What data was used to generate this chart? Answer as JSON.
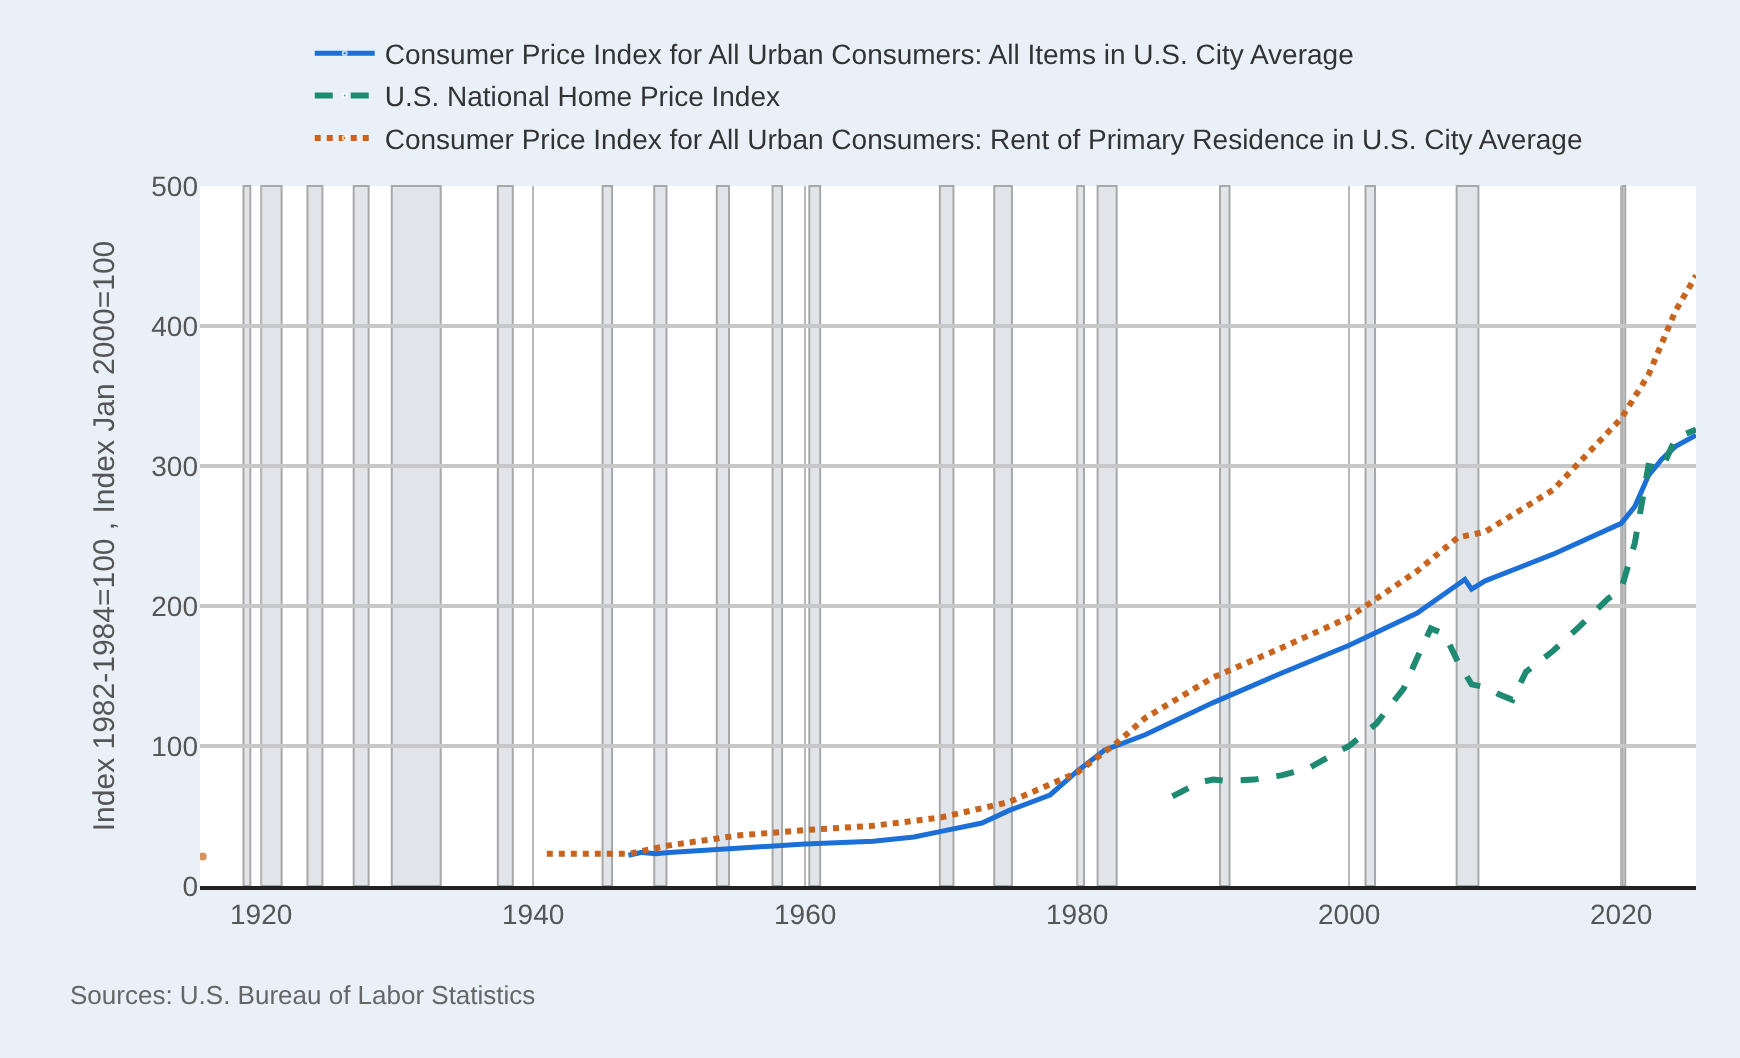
{
  "chart_data": {
    "type": "line",
    "ylabel": "Index 1982-1984=100 , Index Jan 2000=100",
    "annotations": [
      "Sources: U.S. Bureau of Labor Statistics"
    ],
    "xlim": [
      1915.5,
      2025.5
    ],
    "xticks": [
      1920,
      1940,
      1960,
      1980,
      2000,
      2020
    ],
    "ylim": [
      0,
      500
    ],
    "yticks": [
      0,
      100,
      200,
      300,
      400,
      500
    ],
    "grid": true,
    "legend": "top",
    "series": [
      {
        "name": "Consumer Price Index for All Urban Consumers: All Items in U.S. City Average",
        "color": "#1c6fd6",
        "line_style": "solid",
        "x": [
          1947,
          1948,
          1949,
          1950,
          1955,
          1960,
          1965,
          1968,
          1970,
          1973,
          1975,
          1978,
          1980,
          1982,
          1985,
          1990,
          1995,
          2000,
          2005,
          2008.5,
          2009,
          2010,
          2015,
          2020,
          2021,
          2022,
          2023,
          2024,
          2025.5
        ],
        "values": [
          22,
          24,
          23,
          24,
          27,
          30,
          32,
          35,
          39,
          45,
          54,
          65,
          82,
          97,
          108,
          131,
          152,
          172,
          195,
          219,
          212,
          218,
          237,
          259,
          271,
          293,
          305,
          314,
          322
        ]
      },
      {
        "name": "U.S. National Home Price Index",
        "color": "#1f8a72",
        "line_style": "dashed",
        "x": [
          1987,
          1989,
          1990,
          1991,
          1993,
          1995,
          1997,
          1999,
          2000,
          2002,
          2004,
          2005,
          2006,
          2007,
          2008,
          2009,
          2010,
          2011,
          2012,
          2013,
          2015,
          2017,
          2019,
          2020,
          2021,
          2022,
          2023,
          2024,
          2025.5
        ],
        "values": [
          64,
          74,
          76,
          75,
          76,
          79,
          84,
          95,
          100,
          116,
          141,
          163,
          184,
          180,
          160,
          144,
          142,
          137,
          133,
          153,
          168,
          186,
          205,
          212,
          245,
          300,
          298,
          320,
          326
        ]
      },
      {
        "name": "Consumer Price Index for All Urban Consumers: Rent of Primary Residence in U.S. City Average",
        "color": "#c8641e",
        "line_style": "dotted",
        "x": [
          1915.7,
          null,
          1941,
          1942,
          1947,
          1950,
          1955,
          1960,
          1965,
          1970,
          1975,
          1980,
          1983,
          1985,
          1990,
          1995,
          2000,
          2005,
          2008,
          2010,
          2015,
          2020,
          2022,
          2024,
          2025.5
        ],
        "values": [
          21,
          null,
          23,
          23,
          23,
          29,
          36,
          40,
          43,
          49,
          60,
          81,
          103,
          120,
          149,
          170,
          192,
          225,
          249,
          253,
          283,
          334,
          365,
          411,
          436
        ]
      }
    ],
    "bands": [
      {
        "axis": "x",
        "from": 1918.7,
        "to": 1919.2,
        "color": "#e1e5ea"
      },
      {
        "axis": "x",
        "from": 1920.0,
        "to": 1921.5,
        "color": "#e1e5ea"
      },
      {
        "axis": "x",
        "from": 1923.4,
        "to": 1924.5,
        "color": "#e1e5ea"
      },
      {
        "axis": "x",
        "from": 1926.8,
        "to": 1927.9,
        "color": "#e1e5ea"
      },
      {
        "axis": "x",
        "from": 1929.6,
        "to": 1933.2,
        "color": "#e1e5ea"
      },
      {
        "axis": "x",
        "from": 1937.4,
        "to": 1938.5,
        "color": "#e1e5ea"
      },
      {
        "axis": "x",
        "from": 1945.1,
        "to": 1945.8,
        "color": "#e1e5ea"
      },
      {
        "axis": "x",
        "from": 1948.9,
        "to": 1949.8,
        "color": "#e1e5ea"
      },
      {
        "axis": "x",
        "from": 1953.5,
        "to": 1954.4,
        "color": "#e1e5ea"
      },
      {
        "axis": "x",
        "from": 1957.6,
        "to": 1958.3,
        "color": "#e1e5ea"
      },
      {
        "axis": "x",
        "from": 1960.3,
        "to": 1961.1,
        "color": "#e1e5ea"
      },
      {
        "axis": "x",
        "from": 1969.9,
        "to": 1970.9,
        "color": "#e1e5ea"
      },
      {
        "axis": "x",
        "from": 1973.9,
        "to": 1975.2,
        "color": "#e1e5ea"
      },
      {
        "axis": "x",
        "from": 1980.0,
        "to": 1980.5,
        "color": "#e1e5ea"
      },
      {
        "axis": "x",
        "from": 1981.5,
        "to": 1982.9,
        "color": "#e1e5ea"
      },
      {
        "axis": "x",
        "from": 1990.5,
        "to": 1991.2,
        "color": "#e1e5ea"
      },
      {
        "axis": "x",
        "from": 2001.2,
        "to": 2001.9,
        "color": "#e1e5ea"
      },
      {
        "axis": "x",
        "from": 2007.9,
        "to": 2009.5,
        "color": "#e1e5ea"
      },
      {
        "axis": "x",
        "from": 2020.1,
        "to": 2020.3,
        "color": "#e1e5ea"
      }
    ]
  }
}
